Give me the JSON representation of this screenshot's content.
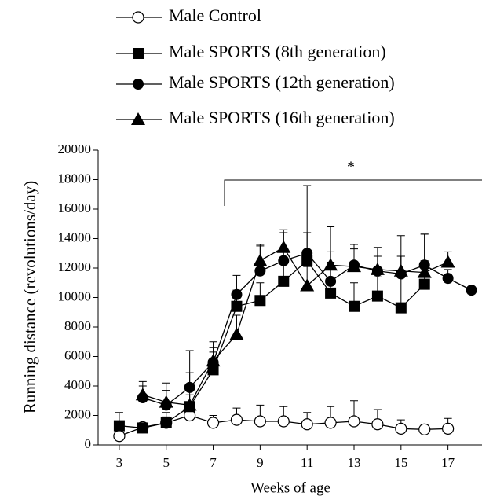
{
  "chart_data": {
    "type": "line",
    "y_label": "Running distance (revolutions/day)",
    "x_label": "Weeks of age",
    "annotation": "*",
    "x": [
      3,
      4,
      5,
      6,
      7,
      8,
      9,
      10,
      11,
      12,
      13,
      14,
      15,
      16,
      17,
      18
    ],
    "xlim": [
      2.1,
      18.45
    ],
    "xticks": [
      3,
      5,
      7,
      9,
      11,
      13,
      15,
      17
    ],
    "ylim": [
      0,
      20000
    ],
    "yticks": [
      0,
      2000,
      4000,
      6000,
      8000,
      10000,
      12000,
      14000,
      16000,
      18000,
      20000
    ],
    "series": [
      {
        "name": "Male Control",
        "color": "#000000",
        "marker": "circle-open",
        "values": [
          600,
          1200,
          1500,
          2000,
          1500,
          1700,
          1600,
          1600,
          1400,
          1500,
          1600,
          1400,
          1100,
          1050,
          1100,
          null
        ],
        "errors": [
          300,
          300,
          400,
          300,
          500,
          800,
          1100,
          1000,
          800,
          1100,
          1400,
          1000,
          600,
          300,
          700,
          null
        ]
      },
      {
        "name": "Male SPORTS (8th generation)",
        "color": "#000000",
        "marker": "square",
        "values": [
          1300,
          1150,
          1500,
          2600,
          5100,
          9400,
          9800,
          11100,
          12500,
          10300,
          9400,
          10100,
          9300,
          10900,
          null,
          null
        ],
        "errors": [
          900,
          300,
          700,
          800,
          1200,
          1100,
          1200,
          1300,
          5100,
          4500,
          1600,
          1300,
          4900,
          3400,
          null,
          null
        ]
      },
      {
        "name": "Male SPORTS (12th generation)",
        "color": "#000000",
        "marker": "circle",
        "values": [
          null,
          3200,
          2700,
          3900,
          5600,
          10200,
          11800,
          12500,
          13000,
          11100,
          12200,
          11800,
          11600,
          12200,
          11300,
          10500
        ],
        "errors": [
          null,
          1100,
          1500,
          2500,
          1400,
          1300,
          1800,
          2100,
          1400,
          1300,
          1400,
          1600,
          1200,
          2100,
          600,
          200
        ]
      },
      {
        "name": "Male SPORTS (16th generation)",
        "color": "#000000",
        "marker": "triangle",
        "values": [
          null,
          3400,
          2900,
          2700,
          5700,
          7500,
          12500,
          13400,
          10800,
          12200,
          12100,
          11900,
          11800,
          11700,
          12400,
          null
        ],
        "errors": [
          null,
          600,
          800,
          2200,
          900,
          1300,
          1000,
          1000,
          1300,
          900,
          1200,
          900,
          1000,
          800,
          700,
          null
        ]
      }
    ]
  }
}
